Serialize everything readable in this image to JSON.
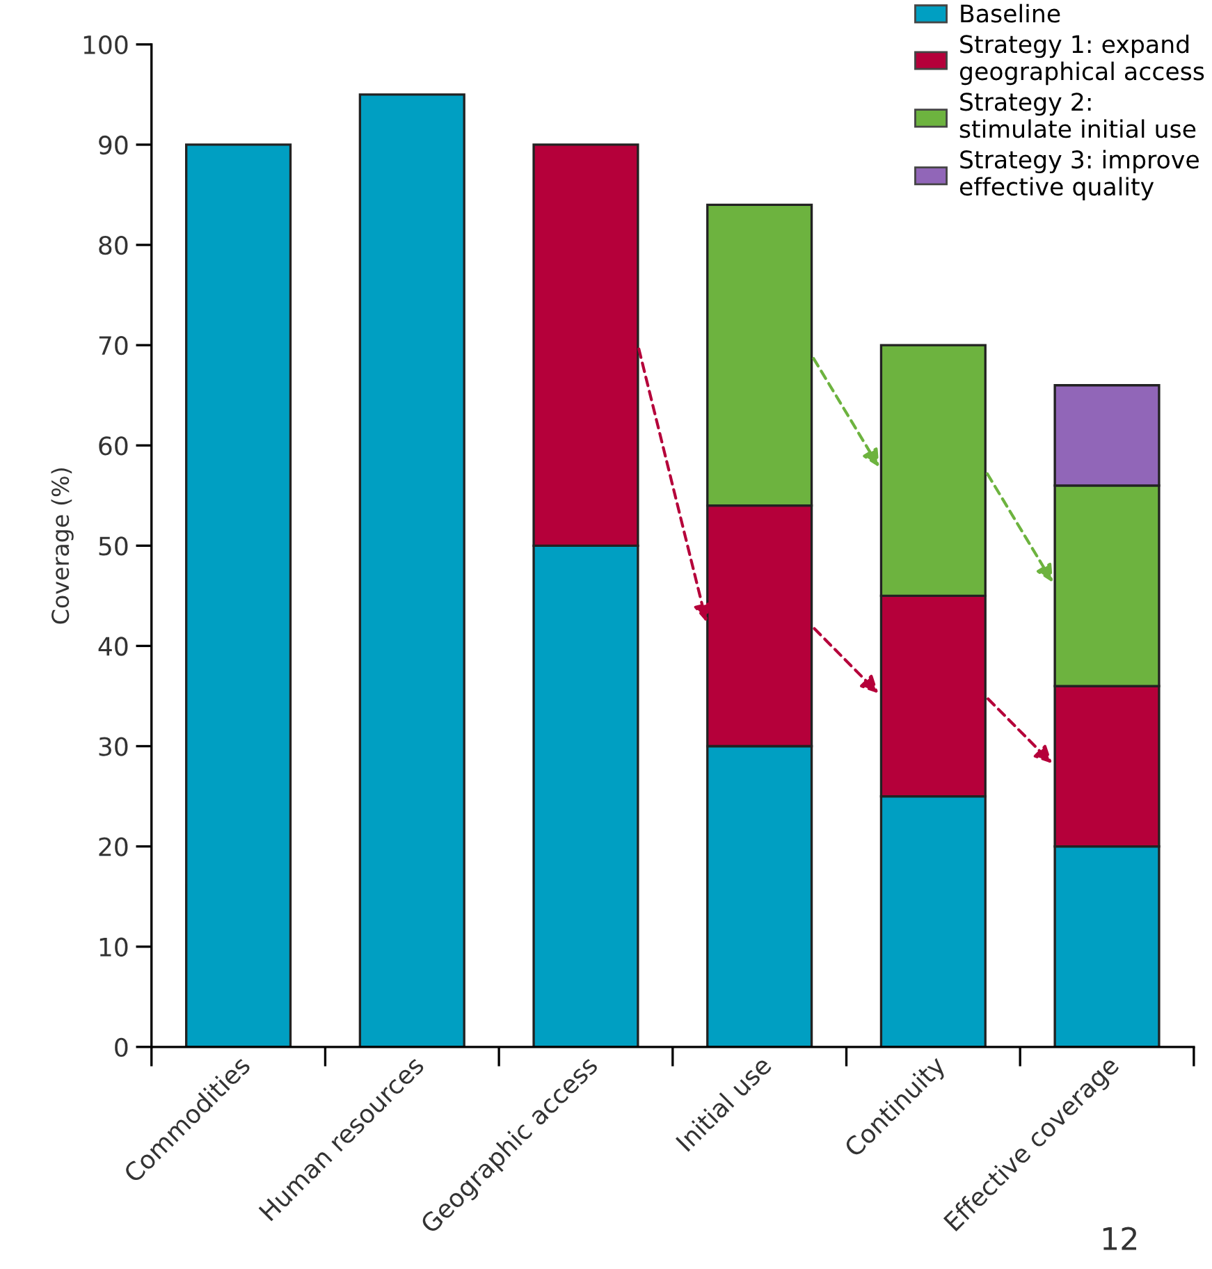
{
  "chart_data": {
    "type": "bar",
    "stacked": true,
    "ylabel": "Coverage (%)",
    "categories": [
      "Commodities",
      "Human resources",
      "Geographic access",
      "Initial use",
      "Continuity",
      "Effective coverage"
    ],
    "series": [
      {
        "name": "Baseline",
        "color": "#009fc2",
        "values": [
          90,
          95,
          50,
          30,
          25,
          20
        ]
      },
      {
        "name": "Strategy 1: expand\ngeographical access",
        "color": "#b5003a",
        "values": [
          null,
          null,
          40,
          24,
          20,
          16
        ]
      },
      {
        "name": "Strategy 2:\nstimulate initial use",
        "color": "#6db33f",
        "values": [
          null,
          null,
          null,
          30,
          25,
          20
        ]
      },
      {
        "name": "Strategy 3: improve\neffective quality",
        "color": "#9166b8",
        "values": [
          null,
          null,
          null,
          null,
          null,
          10
        ]
      }
    ],
    "ylim": [
      0,
      100
    ],
    "yticks": [
      0,
      10,
      20,
      30,
      40,
      50,
      60,
      70,
      80,
      90,
      100
    ],
    "grid": false,
    "legend": "top right",
    "annotations": [
      "12"
    ]
  }
}
